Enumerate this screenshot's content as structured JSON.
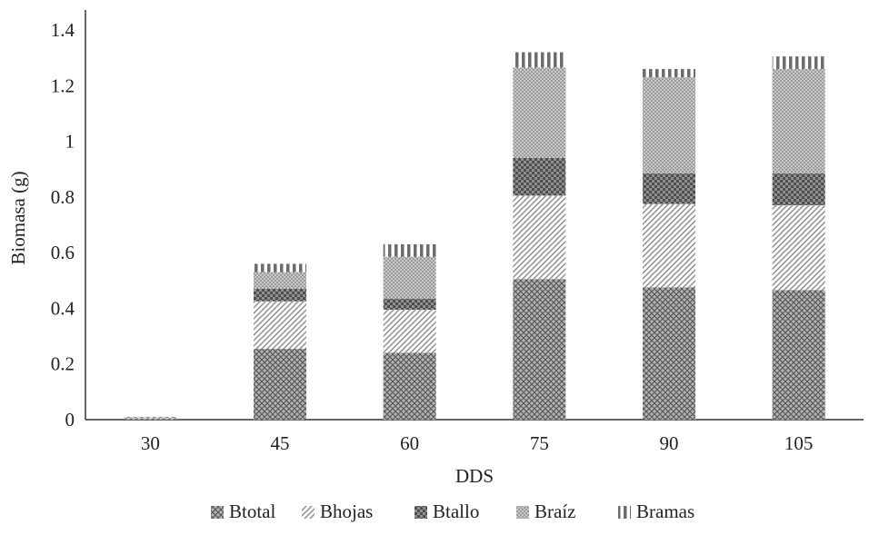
{
  "chart_data": {
    "type": "bar",
    "stacked": true,
    "categories": [
      "30",
      "45",
      "60",
      "75",
      "90",
      "105"
    ],
    "series": [
      {
        "name": "Btotal",
        "values": [
          0.003,
          0.255,
          0.24,
          0.505,
          0.475,
          0.465
        ],
        "pattern": "crosshatch",
        "color": "#8a8a8a"
      },
      {
        "name": "Bhojas",
        "values": [
          0.002,
          0.17,
          0.155,
          0.3,
          0.3,
          0.305
        ],
        "pattern": "diagonal",
        "color": "#9a9a9a"
      },
      {
        "name": "Btallo",
        "values": [
          0.001,
          0.045,
          0.04,
          0.135,
          0.11,
          0.115
        ],
        "pattern": "checker",
        "color": "#6e6e6e"
      },
      {
        "name": "Braíz",
        "values": [
          0.002,
          0.06,
          0.15,
          0.325,
          0.345,
          0.375
        ],
        "pattern": "dotted",
        "color": "#8c8c8c"
      },
      {
        "name": "Bramas",
        "values": [
          0.002,
          0.03,
          0.045,
          0.055,
          0.03,
          0.045
        ],
        "pattern": "vertical",
        "color": "#7a7a7a"
      }
    ],
    "xlabel": "DDS",
    "ylabel": "Biomasa (g)",
    "yticks": [
      "0",
      "0.2",
      "0.4",
      "0.6",
      "0.8",
      "1",
      "1.2",
      "1.4"
    ],
    "ylim": [
      0,
      1.4
    ],
    "grid": false,
    "legend_position": "bottom"
  }
}
